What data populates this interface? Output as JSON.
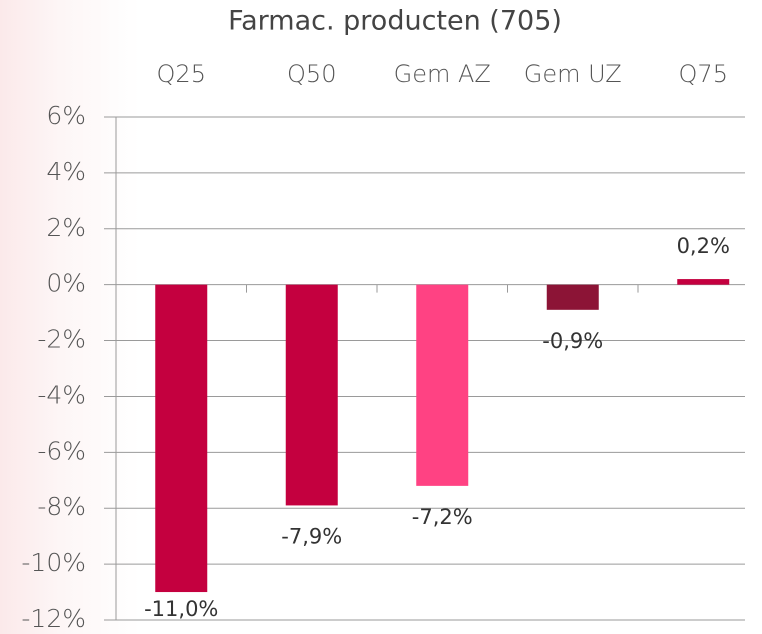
{
  "chart_data": {
    "type": "bar",
    "title": "Farmac. producten (705)",
    "categories": [
      "Q25",
      "Q50",
      "Gem AZ",
      "Gem UZ",
      "Q75"
    ],
    "values": [
      -11.0,
      -7.9,
      -7.2,
      -0.9,
      0.2
    ],
    "value_labels": [
      "-11,0%",
      "-7,9%",
      "-7,2%",
      "-0,9%",
      "0,2%"
    ],
    "colors": [
      "#c4003f",
      "#c4003f",
      "#ff4283",
      "#8c1436",
      "#c4003f"
    ],
    "ylim": [
      -12,
      6
    ],
    "yticks": [
      {
        "value": -12,
        "label": "-12%"
      },
      {
        "value": -10,
        "label": "-10%"
      },
      {
        "value": -8,
        "label": "-8%"
      },
      {
        "value": -6,
        "label": "-6%"
      },
      {
        "value": -4,
        "label": "-4%"
      },
      {
        "value": -2,
        "label": "-2%"
      },
      {
        "value": 0,
        "label": "0%"
      },
      {
        "value": 2,
        "label": "2%"
      },
      {
        "value": 4,
        "label": "4%"
      },
      {
        "value": 6,
        "label": "6%"
      }
    ],
    "grid": true
  }
}
